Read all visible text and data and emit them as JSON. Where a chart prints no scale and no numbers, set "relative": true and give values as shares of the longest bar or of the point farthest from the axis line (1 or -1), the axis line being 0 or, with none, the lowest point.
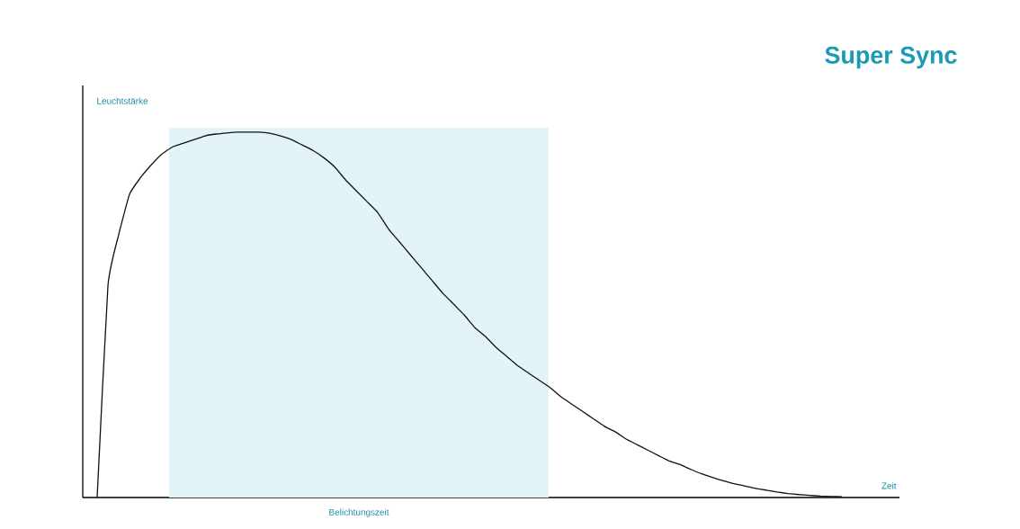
{
  "chart_data": {
    "type": "line",
    "title": "Super Sync",
    "xlabel": "Zeit",
    "relative": true,
    "categories": [
      null,
      null,
      null,
      null,
      null,
      null,
      null,
      null,
      null,
      null,
      null,
      null,
      null,
      null,
      null,
      null,
      null,
      null,
      null,
      null,
      null,
      null,
      null,
      null,
      null,
      null,
      null,
      null,
      null,
      null,
      null,
      null,
      null,
      null,
      null,
      null,
      null,
      null,
      null,
      null,
      null,
      null,
      null,
      null,
      null,
      null,
      null,
      null,
      null,
      null,
      null,
      null,
      null,
      null,
      null,
      null,
      null,
      null,
      null,
      null,
      null,
      null,
      null,
      null,
      null,
      null,
      null,
      null,
      null,
      null
    ],
    "series": [
      {
        "color": "#111111",
        "values": [
          0,
          0.58,
          0.72,
          0.83,
          0.875,
          0.91,
          0.94,
          0.96,
          0.97,
          0.98,
          0.99,
          0.995,
          0.998,
          1.0,
          1.0,
          1.0,
          0.997,
          0.99,
          0.98,
          0.965,
          0.95,
          0.93,
          0.905,
          0.87,
          0.84,
          0.81,
          0.78,
          0.735,
          0.7,
          0.665,
          0.63,
          0.595,
          0.56,
          0.53,
          0.5,
          0.465,
          0.44,
          0.41,
          0.385,
          0.36,
          0.34,
          0.32,
          0.3,
          0.275,
          0.255,
          0.235,
          0.215,
          0.195,
          0.18,
          0.16,
          0.145,
          0.13,
          0.115,
          0.1,
          0.09,
          0.077,
          0.065,
          0.055,
          0.046,
          0.038,
          0.032,
          0.025,
          0.02,
          0.015,
          0.011,
          0.008,
          0.006,
          0.004,
          0.003,
          0.002
        ]
      }
    ],
    "annotations": [
      "Leuchtstärke",
      "Belichtungszeit"
    ]
  }
}
